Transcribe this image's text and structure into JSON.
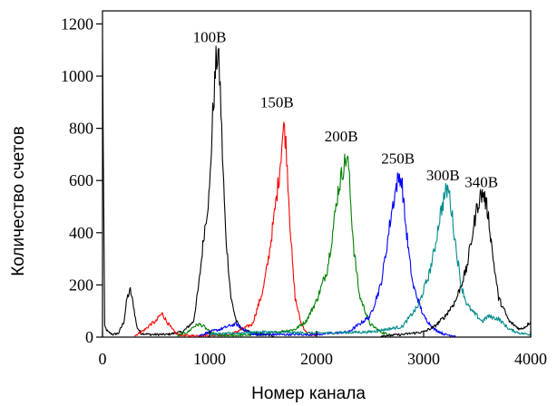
{
  "chart_data": {
    "type": "line",
    "xlabel": "Номер канала",
    "ylabel": "Количество счетов",
    "xlim": [
      0,
      4000
    ],
    "ylim": [
      0,
      1250
    ],
    "x_ticks": [
      0,
      1000,
      2000,
      3000,
      4000
    ],
    "y_ticks": [
      0,
      200,
      400,
      600,
      800,
      1000,
      1200
    ],
    "grid": false,
    "series": [
      {
        "color": "#000000",
        "x": [
          0,
          20,
          50,
          100,
          150,
          200,
          230,
          260,
          290,
          320,
          360,
          450,
          600,
          750,
          850,
          900,
          950,
          1000,
          1030,
          1060,
          1080,
          1100,
          1120,
          1150,
          1200,
          1250,
          1300,
          1400,
          1500,
          1600
        ],
        "values": [
          1120,
          40,
          20,
          10,
          15,
          60,
          150,
          180,
          120,
          40,
          15,
          10,
          10,
          20,
          60,
          200,
          400,
          560,
          850,
          1050,
          1090,
          950,
          700,
          400,
          150,
          60,
          30,
          15,
          10,
          5
        ]
      },
      {
        "color": "#ff0000",
        "x": [
          300,
          400,
          450,
          500,
          530,
          560,
          600,
          650,
          700,
          800,
          1200,
          1400,
          1500,
          1550,
          1600,
          1650,
          1680,
          1700,
          1720,
          1750,
          1780,
          1800,
          1850,
          1900,
          2000
        ],
        "values": [
          5,
          30,
          50,
          60,
          80,
          90,
          60,
          30,
          10,
          5,
          10,
          50,
          180,
          300,
          450,
          620,
          760,
          810,
          700,
          450,
          250,
          150,
          60,
          20,
          5
        ]
      },
      {
        "color": "#008000",
        "x": [
          700,
          800,
          850,
          900,
          950,
          1000,
          1100,
          1500,
          1800,
          1900,
          2000,
          2100,
          2150,
          2200,
          2250,
          2280,
          2300,
          2320,
          2350,
          2400,
          2500,
          2600,
          2700
        ],
        "values": [
          5,
          20,
          40,
          50,
          40,
          20,
          5,
          10,
          30,
          60,
          140,
          260,
          400,
          560,
          650,
          690,
          650,
          500,
          330,
          160,
          50,
          20,
          5
        ]
      },
      {
        "color": "#0000ff",
        "x": [
          900,
          1000,
          1100,
          1200,
          1250,
          1300,
          1400,
          2000,
          2300,
          2500,
          2600,
          2650,
          2700,
          2750,
          2780,
          2800,
          2830,
          2870,
          2900,
          3000,
          3100,
          3200,
          3300
        ],
        "values": [
          5,
          20,
          30,
          45,
          50,
          35,
          10,
          10,
          20,
          80,
          200,
          330,
          480,
          590,
          620,
          580,
          440,
          290,
          200,
          80,
          30,
          10,
          5
        ]
      },
      {
        "color": "#008b8b",
        "x": [
          1000,
          1500,
          2000,
          2500,
          2800,
          2950,
          3050,
          3100,
          3150,
          3200,
          3230,
          3250,
          3300,
          3350,
          3400,
          3450,
          3500,
          3550,
          3600,
          3700,
          3750,
          3800,
          3900,
          4000
        ],
        "values": [
          10,
          20,
          15,
          20,
          40,
          120,
          240,
          330,
          460,
          550,
          570,
          520,
          350,
          200,
          130,
          100,
          80,
          60,
          80,
          70,
          50,
          30,
          15,
          10
        ]
      },
      {
        "color": "#000000",
        "x": [
          2600,
          2800,
          3000,
          3100,
          3200,
          3300,
          3400,
          3450,
          3500,
          3530,
          3560,
          3600,
          3650,
          3700,
          3800,
          3900,
          3950,
          4000
        ],
        "values": [
          5,
          10,
          20,
          40,
          80,
          140,
          260,
          380,
          500,
          540,
          550,
          480,
          300,
          150,
          60,
          30,
          40,
          60
        ]
      }
    ],
    "annotations": [
      {
        "text": "100В",
        "x": 1000,
        "y": 1130
      },
      {
        "text": "150В",
        "x": 1630,
        "y": 880
      },
      {
        "text": "200В",
        "x": 2230,
        "y": 750
      },
      {
        "text": "250В",
        "x": 2760,
        "y": 665
      },
      {
        "text": "300В",
        "x": 3180,
        "y": 600
      },
      {
        "text": "340В",
        "x": 3540,
        "y": 575
      }
    ]
  }
}
